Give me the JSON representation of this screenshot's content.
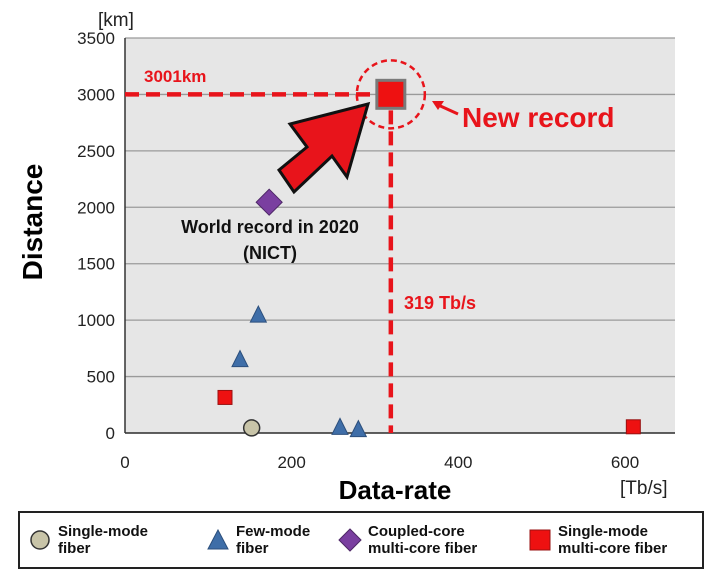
{
  "chart_data": {
    "type": "scatter",
    "title": "",
    "xlabel": "Data-rate",
    "ylabel": "Distance",
    "x_unit": "[Tb/s]",
    "y_unit": "[km]",
    "xlim": [
      0,
      660
    ],
    "ylim": [
      0,
      3500
    ],
    "x_ticks": [
      "0",
      "200",
      "400",
      "600"
    ],
    "y_ticks": [
      "0",
      "500",
      "1000",
      "1500",
      "2000",
      "2500",
      "3000",
      "3500"
    ],
    "grid": "horizontal",
    "series": [
      {
        "name": "Single-mode fiber",
        "marker": "circle",
        "color": "#c8c4a8",
        "points": [
          [
            152,
            45
          ]
        ]
      },
      {
        "name": "Few-mode fiber",
        "marker": "triangle",
        "color": "#3f6ea8",
        "points": [
          [
            138,
            650
          ],
          [
            160,
            1045
          ],
          [
            258,
            50
          ],
          [
            280,
            30
          ]
        ]
      },
      {
        "name": "Coupled-core multi-core fiber",
        "marker": "diamond",
        "color": "#7a3fa0",
        "points": [
          [
            173,
            2045
          ]
        ]
      },
      {
        "name": "Single-mode multi-core fiber",
        "marker": "square",
        "color": "#ee1111",
        "points": [
          [
            120,
            315
          ],
          [
            610,
            55
          ],
          [
            319,
            3001
          ]
        ]
      }
    ],
    "annotations": {
      "record_distance": "3001km",
      "record_rate": "319 Tb/s",
      "new_record": "New record",
      "prev_record_line1": "World record in 2020",
      "prev_record_line2": "(NICT)"
    },
    "legend": {
      "placement": "bottom",
      "items": [
        {
          "line1": "Single-mode",
          "line2": "fiber",
          "marker": "circle",
          "color": "#c8c4a8"
        },
        {
          "line1": "Few-mode",
          "line2": "fiber",
          "marker": "triangle",
          "color": "#3f6ea8"
        },
        {
          "line1": "Coupled-core",
          "line2": "multi-core fiber",
          "marker": "diamond",
          "color": "#7a3fa0"
        },
        {
          "line1": "Single-mode",
          "line2": "multi-core fiber",
          "marker": "square",
          "color": "#ee1111"
        }
      ]
    }
  },
  "colors": {
    "plot_background": "#e6e6e6",
    "grid": "#9a9a9a",
    "accent_red": "#e8141b"
  }
}
